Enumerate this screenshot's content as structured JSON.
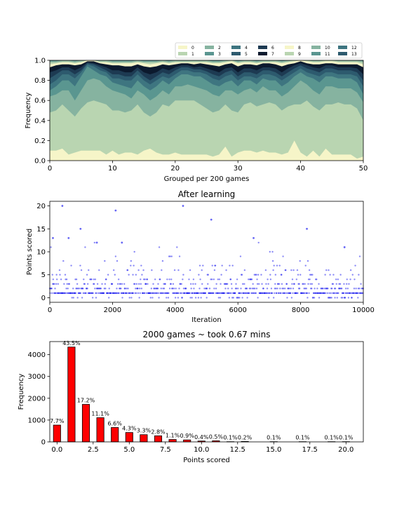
{
  "chart_data": [
    {
      "type": "area",
      "xlabel": "Grouped per 200 games",
      "ylabel": "Frequency",
      "xlim": [
        0,
        50
      ],
      "ylim": [
        0,
        1.0
      ],
      "xticks": [
        0,
        10,
        20,
        30,
        40,
        50
      ],
      "yticks": [
        0.0,
        0.2,
        0.4,
        0.6,
        0.8,
        1.0
      ],
      "legend": {
        "placement": "top-right, above plot",
        "entries": [
          "0",
          "1",
          "2",
          "3",
          "4",
          "5",
          "6",
          "7",
          "8",
          "9",
          "10",
          "11",
          "12",
          "13"
        ]
      },
      "colors": [
        "#f6f5c8",
        "#b9d5b1",
        "#86b3a0",
        "#5a9690",
        "#3e7580",
        "#2d5a6e",
        "#1d3a52",
        "#0c1a2e",
        "#f6f5c8",
        "#b9d5b1",
        "#86b3a0",
        "#5a9690",
        "#3e7580",
        "#2d5a6e"
      ],
      "x": [
        0,
        1,
        2,
        3,
        4,
        5,
        6,
        7,
        8,
        9,
        10,
        11,
        12,
        13,
        14,
        15,
        16,
        17,
        18,
        19,
        20,
        21,
        22,
        23,
        24,
        25,
        26,
        27,
        28,
        29,
        30,
        31,
        32,
        33,
        34,
        35,
        36,
        37,
        38,
        39,
        40,
        41,
        42,
        43,
        44,
        45,
        46,
        47,
        48,
        49,
        50
      ],
      "stack_tops": [
        [
          0.1,
          0.1,
          0.12,
          0.06,
          0.08,
          0.1,
          0.1,
          0.1,
          0.1,
          0.06,
          0.1,
          0.06,
          0.08,
          0.08,
          0.06,
          0.1,
          0.12,
          0.08,
          0.06,
          0.06,
          0.08,
          0.06,
          0.06,
          0.06,
          0.06,
          0.06,
          0.04,
          0.06,
          0.14,
          0.04,
          0.08,
          0.1,
          0.1,
          0.08,
          0.1,
          0.08,
          0.08,
          0.06,
          0.08,
          0.2,
          0.08,
          0.04,
          0.1,
          0.04,
          0.12,
          0.06,
          0.06,
          0.06,
          0.06,
          0.02,
          0.04
        ],
        [
          0.48,
          0.5,
          0.56,
          0.5,
          0.44,
          0.52,
          0.58,
          0.6,
          0.58,
          0.56,
          0.5,
          0.5,
          0.48,
          0.5,
          0.56,
          0.48,
          0.44,
          0.48,
          0.56,
          0.54,
          0.6,
          0.6,
          0.6,
          0.6,
          0.56,
          0.52,
          0.48,
          0.5,
          0.56,
          0.5,
          0.48,
          0.56,
          0.58,
          0.54,
          0.56,
          0.58,
          0.56,
          0.5,
          0.54,
          0.56,
          0.56,
          0.6,
          0.54,
          0.5,
          0.56,
          0.56,
          0.58,
          0.56,
          0.56,
          0.52,
          0.4
        ],
        [
          0.64,
          0.66,
          0.7,
          0.7,
          0.6,
          0.7,
          0.8,
          0.82,
          0.8,
          0.74,
          0.7,
          0.68,
          0.66,
          0.62,
          0.7,
          0.66,
          0.6,
          0.64,
          0.7,
          0.66,
          0.74,
          0.74,
          0.76,
          0.74,
          0.72,
          0.7,
          0.66,
          0.64,
          0.7,
          0.7,
          0.66,
          0.7,
          0.72,
          0.68,
          0.74,
          0.7,
          0.7,
          0.64,
          0.68,
          0.74,
          0.8,
          0.76,
          0.7,
          0.66,
          0.74,
          0.74,
          0.72,
          0.72,
          0.72,
          0.68,
          0.58
        ],
        [
          0.7,
          0.74,
          0.8,
          0.8,
          0.74,
          0.84,
          0.94,
          0.9,
          0.86,
          0.84,
          0.78,
          0.76,
          0.74,
          0.72,
          0.8,
          0.74,
          0.7,
          0.74,
          0.8,
          0.76,
          0.82,
          0.86,
          0.86,
          0.84,
          0.84,
          0.8,
          0.76,
          0.74,
          0.78,
          0.8,
          0.74,
          0.8,
          0.8,
          0.76,
          0.82,
          0.8,
          0.8,
          0.74,
          0.78,
          0.84,
          0.88,
          0.84,
          0.82,
          0.78,
          0.84,
          0.84,
          0.82,
          0.82,
          0.82,
          0.78,
          0.66
        ],
        [
          0.76,
          0.8,
          0.86,
          0.86,
          0.82,
          0.88,
          0.96,
          0.94,
          0.9,
          0.88,
          0.82,
          0.82,
          0.8,
          0.8,
          0.86,
          0.8,
          0.76,
          0.8,
          0.84,
          0.82,
          0.86,
          0.9,
          0.9,
          0.88,
          0.88,
          0.86,
          0.82,
          0.8,
          0.84,
          0.86,
          0.8,
          0.84,
          0.84,
          0.82,
          0.86,
          0.86,
          0.84,
          0.8,
          0.84,
          0.88,
          0.92,
          0.88,
          0.86,
          0.84,
          0.88,
          0.88,
          0.86,
          0.86,
          0.86,
          0.84,
          0.74
        ],
        [
          0.82,
          0.86,
          0.9,
          0.9,
          0.86,
          0.9,
          0.97,
          0.96,
          0.93,
          0.9,
          0.86,
          0.86,
          0.84,
          0.84,
          0.9,
          0.84,
          0.8,
          0.84,
          0.88,
          0.86,
          0.9,
          0.93,
          0.93,
          0.91,
          0.91,
          0.89,
          0.86,
          0.84,
          0.88,
          0.9,
          0.84,
          0.88,
          0.88,
          0.86,
          0.9,
          0.9,
          0.88,
          0.84,
          0.88,
          0.92,
          0.95,
          0.92,
          0.9,
          0.88,
          0.92,
          0.92,
          0.9,
          0.9,
          0.9,
          0.88,
          0.8
        ],
        [
          0.88,
          0.9,
          0.93,
          0.93,
          0.9,
          0.93,
          0.98,
          0.97,
          0.95,
          0.93,
          0.9,
          0.9,
          0.88,
          0.88,
          0.93,
          0.88,
          0.86,
          0.88,
          0.92,
          0.9,
          0.93,
          0.95,
          0.95,
          0.93,
          0.94,
          0.92,
          0.9,
          0.88,
          0.92,
          0.93,
          0.88,
          0.92,
          0.92,
          0.9,
          0.93,
          0.93,
          0.92,
          0.88,
          0.92,
          0.95,
          0.97,
          0.95,
          0.93,
          0.92,
          0.95,
          0.95,
          0.93,
          0.93,
          0.93,
          0.92,
          0.86
        ],
        [
          0.93,
          0.95,
          0.96,
          0.96,
          0.95,
          0.96,
          0.99,
          0.99,
          0.97,
          0.96,
          0.95,
          0.95,
          0.94,
          0.94,
          0.96,
          0.94,
          0.93,
          0.94,
          0.96,
          0.95,
          0.96,
          0.97,
          0.97,
          0.96,
          0.97,
          0.96,
          0.95,
          0.94,
          0.96,
          0.97,
          0.94,
          0.96,
          0.96,
          0.95,
          0.97,
          0.97,
          0.96,
          0.94,
          0.96,
          0.97,
          0.99,
          0.97,
          0.96,
          0.96,
          0.97,
          0.97,
          0.96,
          0.96,
          0.96,
          0.96,
          0.93
        ],
        [
          0.96,
          0.97,
          0.98,
          0.98,
          0.97,
          0.98,
          1.0,
          1.0,
          0.98,
          0.98,
          0.97,
          0.97,
          0.97,
          0.97,
          0.98,
          0.97,
          0.96,
          0.97,
          0.98,
          0.97,
          0.98,
          0.98,
          0.98,
          0.98,
          0.98,
          0.98,
          0.97,
          0.97,
          0.98,
          0.99,
          0.97,
          0.98,
          0.98,
          0.97,
          0.98,
          0.98,
          0.98,
          0.97,
          0.98,
          0.99,
          1.0,
          0.99,
          0.98,
          0.98,
          0.99,
          0.99,
          0.98,
          0.98,
          0.98,
          0.98,
          0.96
        ],
        [
          0.98,
          0.98,
          0.99,
          0.99,
          0.98,
          0.99,
          1.0,
          1.0,
          0.99,
          0.99,
          0.98,
          0.98,
          0.98,
          0.98,
          0.99,
          0.98,
          0.98,
          0.98,
          0.99,
          0.98,
          0.99,
          0.99,
          0.99,
          0.99,
          0.99,
          0.99,
          0.98,
          0.98,
          0.99,
          1.0,
          0.98,
          0.99,
          0.99,
          0.98,
          0.99,
          0.99,
          0.99,
          0.98,
          0.99,
          1.0,
          1.0,
          1.0,
          0.99,
          0.99,
          1.0,
          1.0,
          0.99,
          0.99,
          0.99,
          0.99,
          0.98
        ],
        [
          0.99,
          0.99,
          1.0,
          1.0,
          0.99,
          1.0,
          1.0,
          1.0,
          1.0,
          1.0,
          0.99,
          0.99,
          0.99,
          0.99,
          1.0,
          0.99,
          0.99,
          0.99,
          1.0,
          0.99,
          1.0,
          1.0,
          1.0,
          1.0,
          1.0,
          1.0,
          0.99,
          0.99,
          1.0,
          1.0,
          0.99,
          1.0,
          1.0,
          0.99,
          1.0,
          1.0,
          1.0,
          0.99,
          1.0,
          1.0,
          1.0,
          1.0,
          1.0,
          1.0,
          1.0,
          1.0,
          1.0,
          1.0,
          1.0,
          1.0,
          0.99
        ],
        [
          1.0,
          1.0,
          1.0,
          1.0,
          1.0,
          1.0,
          1.0,
          1.0,
          1.0,
          1.0,
          1.0,
          1.0,
          1.0,
          1.0,
          1.0,
          1.0,
          1.0,
          1.0,
          1.0,
          1.0,
          1.0,
          1.0,
          1.0,
          1.0,
          1.0,
          1.0,
          1.0,
          1.0,
          1.0,
          1.0,
          1.0,
          1.0,
          1.0,
          1.0,
          1.0,
          1.0,
          1.0,
          1.0,
          1.0,
          1.0,
          1.0,
          1.0,
          1.0,
          1.0,
          1.0,
          1.0,
          1.0,
          1.0,
          1.0,
          1.0,
          1.0
        ]
      ]
    },
    {
      "type": "scatter",
      "title": "After learning",
      "xlabel": "Iteration",
      "ylabel": "Points scored",
      "xlim": [
        0,
        10000
      ],
      "ylim": [
        -1,
        21
      ],
      "xticks": [
        0,
        2000,
        4000,
        6000,
        8000,
        10000
      ],
      "yticks": [
        0,
        5,
        10,
        15,
        20
      ],
      "color": "#0000ee",
      "n_points": 10000,
      "notable_points": [
        {
          "x": 400,
          "y": 20
        },
        {
          "x": 2100,
          "y": 19
        },
        {
          "x": 4250,
          "y": 20
        },
        {
          "x": 5150,
          "y": 17
        },
        {
          "x": 980,
          "y": 15
        },
        {
          "x": 8200,
          "y": 15
        },
        {
          "x": 6500,
          "y": 13
        },
        {
          "x": 100,
          "y": 13
        },
        {
          "x": 600,
          "y": 13
        },
        {
          "x": 1500,
          "y": 12
        },
        {
          "x": 2300,
          "y": 12
        },
        {
          "x": 9400,
          "y": 11
        }
      ]
    },
    {
      "type": "bar",
      "title": "2000 games ~ took 0.67 mins",
      "xlabel": "Points scored",
      "ylabel": "Frequency",
      "xlim": [
        -0.5,
        21.2
      ],
      "ylim": [
        0,
        4600
      ],
      "xticks": [
        "0.0",
        "2.5",
        "5.0",
        "7.5",
        "10.0",
        "12.5",
        "15.0",
        "17.5",
        "20.0"
      ],
      "yticks": [
        0,
        1000,
        2000,
        3000,
        4000
      ],
      "bar_color": "#ff0000",
      "x": [
        0,
        1,
        2,
        3,
        4,
        5,
        6,
        7,
        8,
        9,
        10,
        11,
        12,
        13,
        15,
        17,
        19,
        20
      ],
      "values": [
        770,
        4350,
        1720,
        1110,
        660,
        430,
        330,
        280,
        110,
        90,
        40,
        50,
        10,
        20,
        10,
        10,
        10,
        10
      ],
      "labels": [
        "7.7%",
        "43.5%",
        "17.2%",
        "11.1%",
        "6.6%",
        "4.3%",
        "3.3%",
        "2.8%",
        "1.1%",
        "0.9%",
        "0.4%",
        "0.5%",
        "0.1%",
        "0.2%",
        "0.1%",
        "0.1%",
        "0.1%",
        "0.1%"
      ]
    }
  ]
}
